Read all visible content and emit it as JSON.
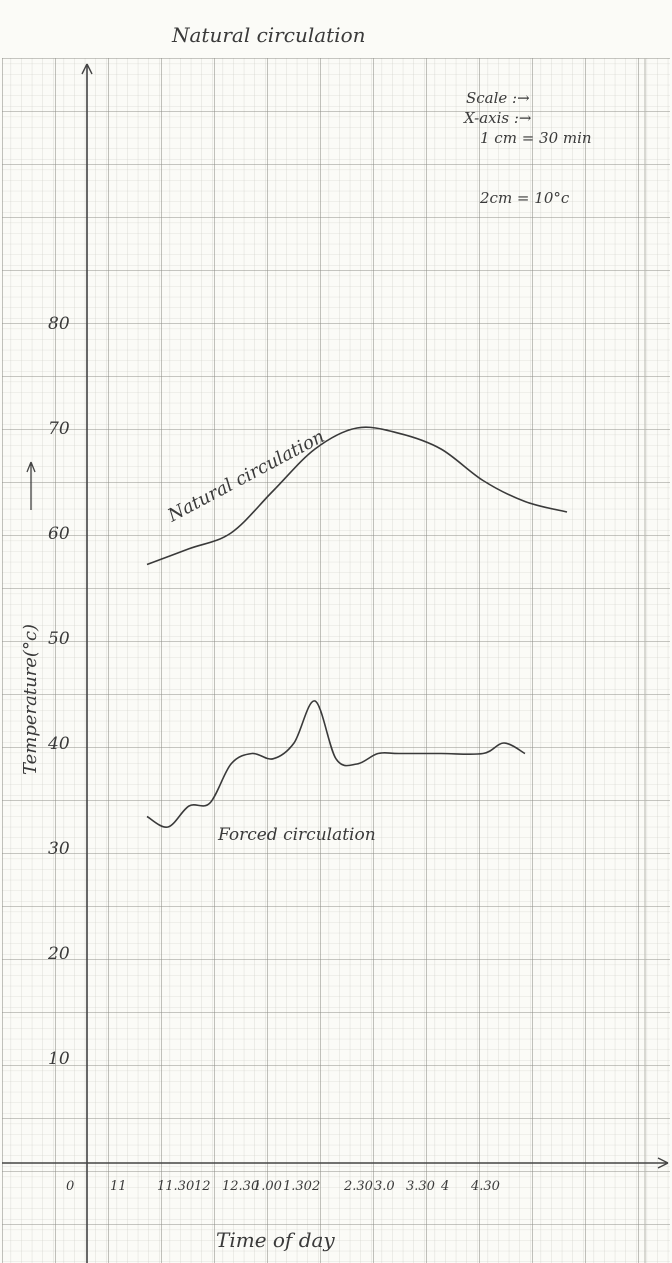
{
  "page_title": "Natural circulation",
  "scale_note": {
    "line1": "Scale :→",
    "line2": "X-axis :→",
    "line3": "1 cm = 30 min",
    "line4": "2cm = 10°c"
  },
  "chart_data": {
    "type": "line",
    "title": "",
    "xlabel": "Time of day",
    "ylabel": "Temperature(°c)",
    "x_ticks": [
      "0",
      "11",
      "11.30",
      "12",
      "12.30",
      "1.00",
      "1.30",
      "2",
      "2.30",
      "3.0",
      "3.30",
      "4",
      "4.30"
    ],
    "y_ticks": [
      10,
      20,
      30,
      40,
      50,
      60,
      70,
      80
    ],
    "xlim": [
      "0",
      "4.30"
    ],
    "ylim": [
      0,
      80
    ],
    "grid": true,
    "legend": "none (labels on curves)",
    "series": [
      {
        "name": "Natural circulation",
        "color": "#3a3a3a",
        "points": [
          [
            "11.30",
            57
          ],
          [
            "12",
            58.5
          ],
          [
            "12.30",
            60
          ],
          [
            "1.00",
            64
          ],
          [
            "1.30",
            68
          ],
          [
            "2",
            70
          ],
          [
            "2.30",
            69.5
          ],
          [
            "3.0",
            68
          ],
          [
            "3.30",
            65
          ],
          [
            "4",
            63
          ],
          [
            "4.30",
            62
          ]
        ]
      },
      {
        "name": "Forced circulation",
        "color": "#3a3a3a",
        "points": [
          [
            "11.30",
            33
          ],
          [
            "11.45",
            32
          ],
          [
            "12",
            34
          ],
          [
            "12.15",
            34.3
          ],
          [
            "12.30",
            38
          ],
          [
            "12.45",
            39
          ],
          [
            "1.00",
            38.5
          ],
          [
            "1.15",
            40
          ],
          [
            "1.30",
            44
          ],
          [
            "1.45",
            38.5
          ],
          [
            "2",
            38
          ],
          [
            "2.15",
            39
          ],
          [
            "2.30",
            39
          ],
          [
            "3.0",
            39
          ],
          [
            "3.30",
            39
          ],
          [
            "3.45",
            40
          ],
          [
            "4",
            39
          ]
        ]
      }
    ]
  }
}
